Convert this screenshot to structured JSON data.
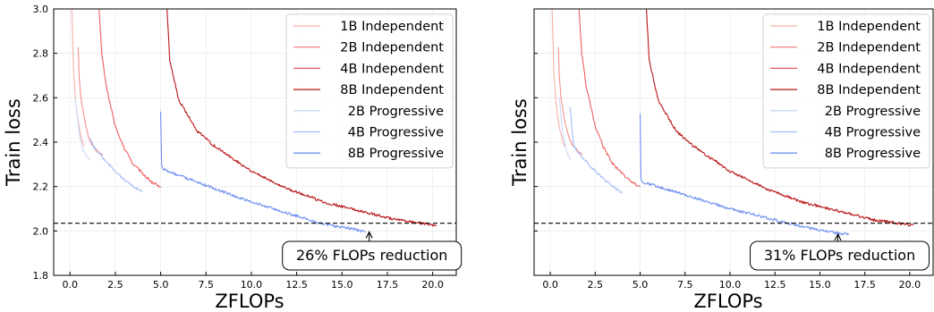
{
  "chart_data": [
    {
      "type": "line",
      "xlabel": "ZFLOPs",
      "ylabel": "Train loss",
      "xlim": [
        -0.9,
        21.3
      ],
      "ylim": [
        1.8,
        3.0
      ],
      "xticks": [
        "0.0",
        "2.5",
        "5.0",
        "7.5",
        "10.0",
        "12.5",
        "15.0",
        "17.5",
        "20.0"
      ],
      "yticks": [
        "1.8",
        "2.0",
        "2.2",
        "2.4",
        "2.6",
        "2.8",
        "3.0"
      ],
      "grid": true,
      "legend_position": "top-right",
      "reference_line": {
        "y": 2.035,
        "style": "dashed"
      },
      "annotation": {
        "text": "26% FLOPs reduction",
        "arrow_to": {
          "x": 16.5,
          "y": 2.0
        }
      },
      "series": [
        {
          "name": "1B Independent",
          "color": "#f4b0a8",
          "x": [
            0.1,
            0.2,
            0.3,
            0.4,
            0.5,
            0.6,
            0.7,
            0.8
          ],
          "y": [
            3.0,
            2.72,
            2.6,
            2.52,
            2.47,
            2.43,
            2.4,
            2.38
          ]
        },
        {
          "name": "2B Independent",
          "color": "#f58e8c",
          "x": [
            0.45,
            0.5,
            0.6,
            0.8,
            1.0,
            1.2,
            1.5,
            1.8
          ],
          "y": [
            2.83,
            2.7,
            2.6,
            2.5,
            2.43,
            2.39,
            2.36,
            2.34
          ]
        },
        {
          "name": "4B Independent",
          "color": "#ef5c5c",
          "x": [
            1.6,
            1.75,
            2.0,
            2.5,
            3.0,
            3.5,
            4.0,
            4.5,
            5.0
          ],
          "y": [
            3.0,
            2.8,
            2.65,
            2.47,
            2.37,
            2.3,
            2.26,
            2.22,
            2.2
          ]
        },
        {
          "name": "8B Independent",
          "color": "#b81416",
          "x": [
            5.35,
            5.5,
            6.0,
            7.0,
            8.0,
            10.0,
            12.0,
            14.0,
            16.0,
            18.0,
            20.2
          ],
          "y": [
            3.0,
            2.77,
            2.59,
            2.45,
            2.38,
            2.27,
            2.19,
            2.13,
            2.09,
            2.05,
            2.025
          ]
        },
        {
          "name": "2B Progressive",
          "color": "#c9d7f6",
          "x": [
            0.3,
            0.5,
            0.7,
            0.9,
            1.1
          ],
          "y": [
            2.6,
            2.44,
            2.37,
            2.34,
            2.32
          ]
        },
        {
          "name": "4B Progressive",
          "color": "#a5bef6",
          "x": [
            1.1,
            1.3,
            1.8,
            2.5,
            3.0,
            3.5,
            4.0
          ],
          "y": [
            2.42,
            2.38,
            2.33,
            2.27,
            2.23,
            2.2,
            2.18
          ]
        },
        {
          "name": "8B Progressive",
          "color": "#6e8ef0",
          "x": [
            5.0,
            5.05,
            5.1,
            6.0,
            8.0,
            10.0,
            12.0,
            14.0,
            15.5,
            16.3
          ],
          "y": [
            2.54,
            2.3,
            2.28,
            2.25,
            2.19,
            2.13,
            2.08,
            2.03,
            2.01,
            1.995
          ]
        }
      ]
    },
    {
      "type": "line",
      "xlabel": "ZFLOPs",
      "ylabel": "Train loss",
      "xlim": [
        -0.9,
        21.3
      ],
      "ylim": [
        1.8,
        3.0
      ],
      "xticks": [
        "0.0",
        "2.5",
        "5.0",
        "7.5",
        "10.0",
        "12.5",
        "15.0",
        "17.5",
        "20.0"
      ],
      "yticks": [],
      "grid": true,
      "legend_position": "top-right",
      "reference_line": {
        "y": 2.035,
        "style": "dashed"
      },
      "annotation": {
        "text": "31% FLOPs reduction",
        "arrow_to": {
          "x": 16.0,
          "y": 1.99
        }
      },
      "series": [
        {
          "name": "1B Independent",
          "color": "#f4b0a8",
          "x": [
            0.1,
            0.2,
            0.3,
            0.4,
            0.5,
            0.6,
            0.7,
            0.8
          ],
          "y": [
            3.0,
            2.72,
            2.6,
            2.52,
            2.47,
            2.43,
            2.4,
            2.38
          ]
        },
        {
          "name": "2B Independent",
          "color": "#f58e8c",
          "x": [
            0.45,
            0.5,
            0.6,
            0.8,
            1.0,
            1.2,
            1.5,
            1.8
          ],
          "y": [
            2.83,
            2.7,
            2.6,
            2.5,
            2.43,
            2.39,
            2.36,
            2.34
          ]
        },
        {
          "name": "4B Independent",
          "color": "#ef5c5c",
          "x": [
            1.6,
            1.75,
            2.0,
            2.5,
            3.0,
            3.5,
            4.0,
            4.5,
            5.0
          ],
          "y": [
            3.0,
            2.8,
            2.65,
            2.47,
            2.37,
            2.3,
            2.26,
            2.22,
            2.2
          ]
        },
        {
          "name": "8B Independent",
          "color": "#b81416",
          "x": [
            5.35,
            5.5,
            6.0,
            7.0,
            8.0,
            10.0,
            12.0,
            14.0,
            16.0,
            18.0,
            20.2
          ],
          "y": [
            3.0,
            2.77,
            2.59,
            2.45,
            2.38,
            2.27,
            2.19,
            2.13,
            2.09,
            2.05,
            2.025
          ]
        },
        {
          "name": "2B Progressive",
          "color": "#c9d7f6",
          "x": [
            0.5,
            0.7,
            0.9,
            1.0,
            1.1
          ],
          "y": [
            2.6,
            2.44,
            2.36,
            2.34,
            2.32
          ]
        },
        {
          "name": "4B Progressive",
          "color": "#a5bef6",
          "x": [
            1.1,
            1.3,
            1.8,
            2.5,
            3.0,
            3.5,
            4.0
          ],
          "y": [
            2.56,
            2.38,
            2.33,
            2.27,
            2.23,
            2.2,
            2.17
          ]
        },
        {
          "name": "8B Progressive",
          "color": "#6e8ef0",
          "x": [
            5.0,
            5.05,
            5.1,
            6.0,
            8.0,
            10.0,
            12.0,
            14.0,
            15.5,
            16.6
          ],
          "y": [
            2.53,
            2.24,
            2.22,
            2.2,
            2.15,
            2.1,
            2.06,
            2.02,
            1.995,
            1.985
          ]
        }
      ]
    }
  ]
}
